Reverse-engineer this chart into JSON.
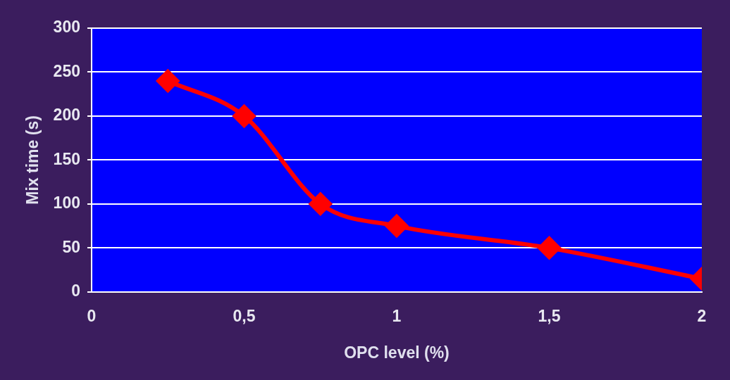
{
  "chart_data": {
    "type": "line",
    "xlabel": "OPC level (%)",
    "ylabel": "Mix time (s)",
    "x": [
      0.25,
      0.5,
      0.75,
      1,
      1.5,
      2
    ],
    "series": [
      {
        "color": "#ff0000",
        "values": [
          240,
          200,
          100,
          75,
          50,
          15
        ]
      }
    ],
    "xlim": [
      0,
      2
    ],
    "xticks": [
      0,
      {
        "value": 0.5,
        "label": "0,5"
      },
      1,
      {
        "value": 1.5,
        "label": "1,5"
      },
      2
    ],
    "ylim": [
      0,
      300
    ],
    "yticks": [
      0,
      50,
      100,
      150,
      200,
      250,
      300
    ],
    "grid": "y",
    "legend": false,
    "marker": "diamond",
    "line_style": "solid"
  }
}
